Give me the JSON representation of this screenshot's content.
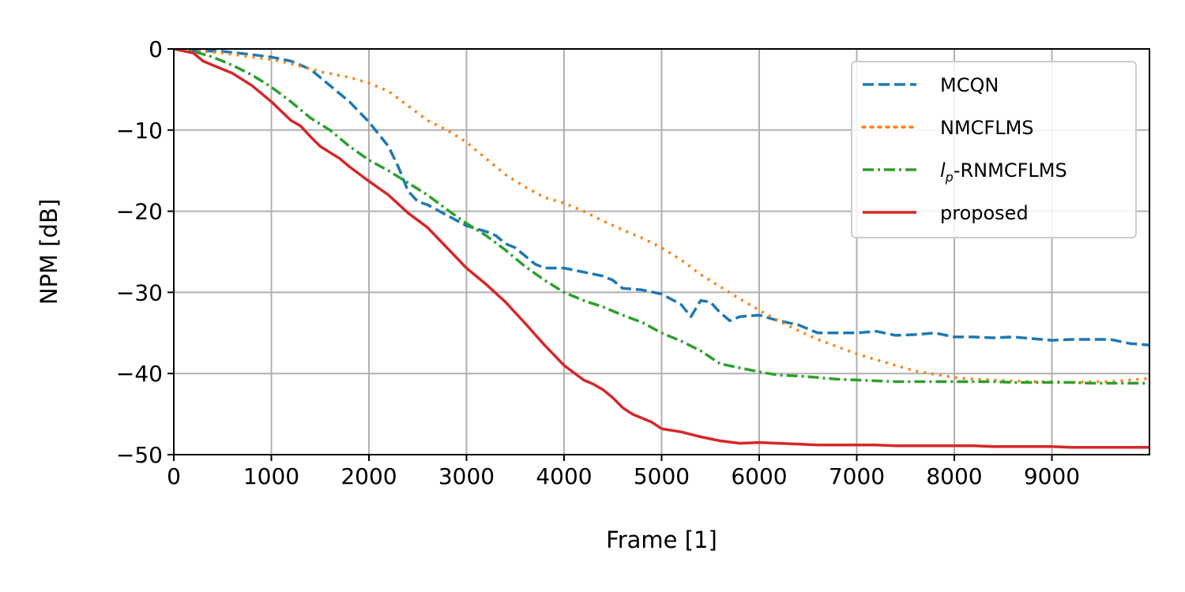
{
  "chart_data": {
    "type": "line",
    "xlabel": "Frame [1]",
    "ylabel": "NPM [dB]",
    "xlim": [
      0,
      10000
    ],
    "ylim": [
      -50,
      0
    ],
    "xticks": [
      "0",
      "1000",
      "2000",
      "3000",
      "4000",
      "5000",
      "6000",
      "7000",
      "8000",
      "9000"
    ],
    "xtick_values": [
      0,
      1000,
      2000,
      3000,
      4000,
      5000,
      6000,
      7000,
      8000,
      9000
    ],
    "yticks": [
      "0",
      "−10",
      "−20",
      "−30",
      "−40",
      "−50"
    ],
    "ytick_values": [
      0,
      -10,
      -20,
      -30,
      -40,
      -50
    ],
    "grid": true,
    "legend_position": "top-right",
    "series": [
      {
        "name": "MCQN",
        "color": "#1f77b4",
        "style": "dashed",
        "x": [
          0,
          200,
          500,
          800,
          1000,
          1200,
          1400,
          1600,
          1800,
          2000,
          2200,
          2300,
          2400,
          2500,
          2600,
          2800,
          3000,
          3200,
          3300,
          3400,
          3500,
          3600,
          3700,
          3800,
          4000,
          4200,
          4400,
          4500,
          4600,
          4800,
          5000,
          5200,
          5300,
          5400,
          5500,
          5600,
          5700,
          5800,
          6000,
          6200,
          6400,
          6600,
          6800,
          7000,
          7200,
          7400,
          7600,
          7800,
          8000,
          8200,
          8400,
          8600,
          8800,
          9000,
          9200,
          9400,
          9600,
          9800,
          10000
        ],
        "y": [
          0,
          -0.2,
          -0.3,
          -0.7,
          -1.0,
          -1.5,
          -2.5,
          -4.5,
          -6.5,
          -9.0,
          -12.0,
          -14.5,
          -17.5,
          -18.8,
          -19.2,
          -20.5,
          -21.8,
          -22.5,
          -23.0,
          -24.0,
          -24.5,
          -25.5,
          -26.5,
          -27.0,
          -27.0,
          -27.5,
          -28.0,
          -28.5,
          -29.5,
          -29.7,
          -30.2,
          -31.5,
          -33.0,
          -31.0,
          -31.2,
          -32.5,
          -33.5,
          -33.0,
          -32.8,
          -33.5,
          -34.0,
          -35.0,
          -35.0,
          -35.0,
          -34.8,
          -35.3,
          -35.2,
          -35.0,
          -35.5,
          -35.5,
          -35.6,
          -35.5,
          -35.7,
          -35.9,
          -35.8,
          -35.8,
          -35.8,
          -36.3,
          -36.5
        ]
      },
      {
        "name": "NMCFLMS",
        "color": "#ff7f0e",
        "style": "dotted",
        "x": [
          0,
          200,
          500,
          800,
          1000,
          1200,
          1500,
          1800,
          2000,
          2200,
          2400,
          2600,
          2800,
          3000,
          3200,
          3400,
          3600,
          3800,
          4000,
          4200,
          4400,
          4600,
          4800,
          5000,
          5200,
          5400,
          5600,
          5800,
          6000,
          6200,
          6400,
          6600,
          6800,
          7000,
          7200,
          7400,
          7600,
          7800,
          8000,
          8200,
          8400,
          8600,
          8800,
          9000,
          9200,
          9400,
          9600,
          9800,
          10000
        ],
        "y": [
          0,
          -0.2,
          -0.5,
          -1.0,
          -1.3,
          -1.8,
          -2.8,
          -3.5,
          -4.2,
          -5.2,
          -7.0,
          -8.8,
          -10.0,
          -11.5,
          -13.5,
          -15.5,
          -17.0,
          -18.3,
          -19.0,
          -20.0,
          -21.2,
          -22.3,
          -23.3,
          -24.5,
          -26.0,
          -27.8,
          -29.3,
          -30.8,
          -32.2,
          -33.5,
          -34.7,
          -35.8,
          -36.7,
          -37.6,
          -38.3,
          -39.0,
          -39.7,
          -40.1,
          -40.5,
          -40.7,
          -40.8,
          -40.9,
          -41.0,
          -41.0,
          -41.1,
          -41.0,
          -41.0,
          -40.8,
          -40.6
        ]
      },
      {
        "name": "-RNMCFLMS",
        "name_prefix": "l",
        "name_subscript": "p",
        "color": "#2ca02c",
        "style": "dashdot",
        "x": [
          0,
          200,
          400,
          600,
          800,
          1000,
          1200,
          1400,
          1600,
          1800,
          2000,
          2200,
          2400,
          2600,
          2800,
          3000,
          3200,
          3400,
          3600,
          3800,
          4000,
          4200,
          4400,
          4600,
          4800,
          5000,
          5200,
          5400,
          5600,
          5800,
          6000,
          6200,
          6400,
          6600,
          6800,
          7000,
          7200,
          7400,
          7600,
          7800,
          8000,
          8200,
          8400,
          8600,
          8800,
          9000,
          9200,
          9400,
          9600,
          9800,
          10000
        ],
        "y": [
          0,
          -0.3,
          -1.0,
          -2.0,
          -3.2,
          -4.7,
          -6.5,
          -8.5,
          -10.0,
          -12.0,
          -13.7,
          -15.0,
          -16.5,
          -18.0,
          -19.8,
          -21.5,
          -23.0,
          -24.8,
          -26.8,
          -28.5,
          -30.0,
          -31.0,
          -31.8,
          -32.8,
          -33.7,
          -35.0,
          -36.0,
          -37.2,
          -38.8,
          -39.3,
          -39.8,
          -40.2,
          -40.3,
          -40.5,
          -40.7,
          -40.8,
          -40.9,
          -41.0,
          -41.0,
          -41.0,
          -41.0,
          -41.0,
          -41.0,
          -41.1,
          -41.1,
          -41.1,
          -41.1,
          -41.2,
          -41.2,
          -41.2,
          -41.2
        ]
      },
      {
        "name": "proposed",
        "color": "#d62728",
        "style": "solid",
        "x": [
          0,
          200,
          300,
          400,
          600,
          800,
          1000,
          1200,
          1300,
          1400,
          1500,
          1700,
          1800,
          2000,
          2200,
          2400,
          2600,
          2800,
          3000,
          3200,
          3400,
          3600,
          3800,
          4000,
          4200,
          4300,
          4400,
          4500,
          4600,
          4700,
          4800,
          4900,
          5000,
          5200,
          5400,
          5600,
          5800,
          6000,
          6200,
          6400,
          6600,
          6800,
          7000,
          7200,
          7400,
          7600,
          7800,
          8000,
          8200,
          8400,
          8600,
          8800,
          9000,
          9200,
          9400,
          9600,
          9800,
          10000
        ],
        "y": [
          0,
          -0.5,
          -1.5,
          -2.0,
          -3.0,
          -4.5,
          -6.5,
          -8.8,
          -9.5,
          -10.8,
          -12.0,
          -13.5,
          -14.5,
          -16.3,
          -18.0,
          -20.2,
          -22.0,
          -24.5,
          -27.0,
          -29.0,
          -31.2,
          -33.8,
          -36.5,
          -39.0,
          -40.8,
          -41.3,
          -42.0,
          -43.0,
          -44.2,
          -45.0,
          -45.5,
          -46.0,
          -46.8,
          -47.2,
          -47.8,
          -48.3,
          -48.6,
          -48.5,
          -48.6,
          -48.7,
          -48.8,
          -48.8,
          -48.8,
          -48.8,
          -48.9,
          -48.9,
          -48.9,
          -48.9,
          -48.9,
          -49.0,
          -49.0,
          -49.0,
          -49.0,
          -49.1,
          -49.1,
          -49.1,
          -49.1,
          -49.1
        ]
      }
    ]
  }
}
